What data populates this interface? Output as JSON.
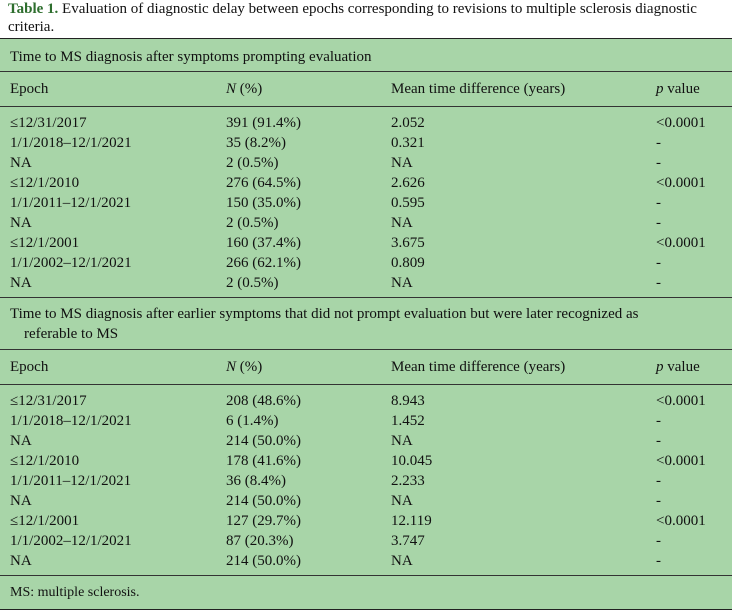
{
  "caption": {
    "label": "Table 1.",
    "text": "Evaluation of diagnostic delay between epochs corresponding to revisions to multiple sclerosis diagnostic criteria."
  },
  "columns": {
    "epoch": "Epoch",
    "n_italic": "N",
    "n_suffix": " (%)",
    "mean": "Mean time difference (years)",
    "p_italic": "p",
    "p_suffix": " value"
  },
  "sections": [
    {
      "title": "Time to MS diagnosis after symptoms prompting evaluation",
      "title_cont": "",
      "rows": [
        {
          "epoch": "≤12/31/2017",
          "n": "391 (91.4%)",
          "mean": "2.052",
          "p": "<0.0001"
        },
        {
          "epoch": "1/1/2018–12/1/2021",
          "n": "35 (8.2%)",
          "mean": "0.321",
          "p": "-"
        },
        {
          "epoch": "NA",
          "n": "2 (0.5%)",
          "mean": "NA",
          "p": "-"
        },
        {
          "epoch": "≤12/1/2010",
          "n": "276 (64.5%)",
          "mean": "2.626",
          "p": "<0.0001"
        },
        {
          "epoch": "1/1/2011–12/1/2021",
          "n": "150 (35.0%)",
          "mean": "0.595",
          "p": "-"
        },
        {
          "epoch": "NA",
          "n": "2 (0.5%)",
          "mean": "NA",
          "p": "-"
        },
        {
          "epoch": "≤12/1/2001",
          "n": "160 (37.4%)",
          "mean": "3.675",
          "p": "<0.0001"
        },
        {
          "epoch": "1/1/2002–12/1/2021",
          "n": "266 (62.1%)",
          "mean": "0.809",
          "p": "-"
        },
        {
          "epoch": "NA",
          "n": "2 (0.5%)",
          "mean": "NA",
          "p": "-"
        }
      ]
    },
    {
      "title": "Time to MS diagnosis after earlier symptoms that did not prompt evaluation but were later recognized as",
      "title_cont": "referable to MS",
      "rows": [
        {
          "epoch": "≤12/31/2017",
          "n": "208 (48.6%)",
          "mean": "8.943",
          "p": "<0.0001"
        },
        {
          "epoch": "1/1/2018–12/1/2021",
          "n": "6 (1.4%)",
          "mean": "1.452",
          "p": "-"
        },
        {
          "epoch": "NA",
          "n": "214 (50.0%)",
          "mean": "NA",
          "p": "-"
        },
        {
          "epoch": "≤12/1/2010",
          "n": "178 (41.6%)",
          "mean": "10.045",
          "p": "<0.0001"
        },
        {
          "epoch": "1/1/2011–12/1/2021",
          "n": "36 (8.4%)",
          "mean": "2.233",
          "p": "-"
        },
        {
          "epoch": "NA",
          "n": "214 (50.0%)",
          "mean": "NA",
          "p": "-"
        },
        {
          "epoch": "≤12/1/2001",
          "n": "127 (29.7%)",
          "mean": "12.119",
          "p": "<0.0001"
        },
        {
          "epoch": "1/1/2002–12/1/2021",
          "n": "87 (20.3%)",
          "mean": "3.747",
          "p": "-"
        },
        {
          "epoch": "NA",
          "n": "214 (50.0%)",
          "mean": "NA",
          "p": "-"
        }
      ]
    }
  ],
  "footnote": "MS: multiple sclerosis."
}
